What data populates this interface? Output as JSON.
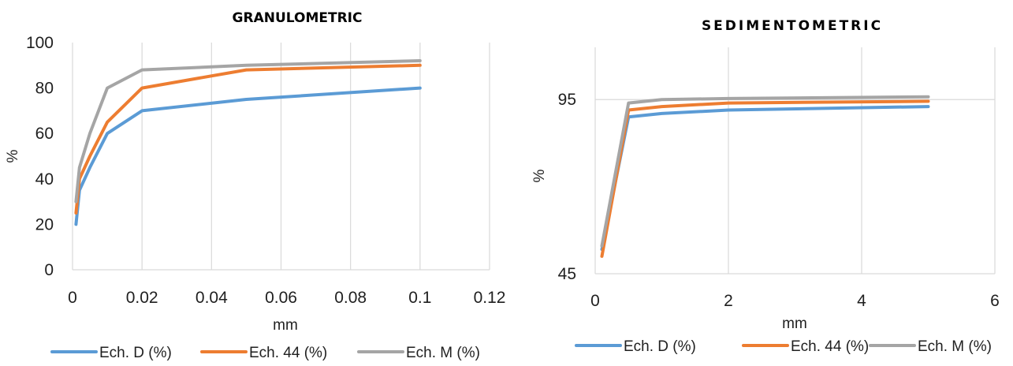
{
  "chart_data": [
    {
      "type": "line",
      "title": "GRANULOMETRIC",
      "xlabel": "mm",
      "ylabel": "%",
      "xlim": [
        0,
        0.12
      ],
      "ylim": [
        0,
        100
      ],
      "xticks": [
        "0",
        "0.02",
        "0.04",
        "0.06",
        "0.08",
        "0.1",
        "0.12"
      ],
      "yticks": [
        "0",
        "20",
        "40",
        "60",
        "80",
        "100"
      ],
      "xtick_values": [
        0,
        0.02,
        0.04,
        0.06,
        0.08,
        0.1,
        0.12
      ],
      "ytick_values": [
        0,
        20,
        40,
        60,
        80,
        100
      ],
      "grid": "vertical",
      "legend": "bottom",
      "series": [
        {
          "name": "Ech. D (%)",
          "color": "#5b9bd5",
          "x": [
            0.001,
            0.002,
            0.005,
            0.01,
            0.02,
            0.05,
            0.1
          ],
          "y": [
            20,
            35,
            45,
            60,
            70,
            75,
            80
          ]
        },
        {
          "name": "Ech. 44 (%)",
          "color": "#ed7d31",
          "x": [
            0.001,
            0.002,
            0.005,
            0.01,
            0.02,
            0.05,
            0.1
          ],
          "y": [
            25,
            40,
            50,
            65,
            80,
            88,
            90
          ]
        },
        {
          "name": "Ech. M (%)",
          "color": "#a5a5a5",
          "x": [
            0.001,
            0.002,
            0.005,
            0.01,
            0.02,
            0.05,
            0.1
          ],
          "y": [
            30,
            45,
            60,
            80,
            88,
            90,
            92
          ]
        }
      ]
    },
    {
      "type": "line",
      "title": "SEDIMENTOMETRIC",
      "xlabel": "mm",
      "ylabel": "%",
      "xlim": [
        0,
        6
      ],
      "ylim": [
        45,
        110
      ],
      "xticks": [
        "0",
        "2",
        "4",
        "6"
      ],
      "yticks": [
        "45",
        "95"
      ],
      "xtick_values": [
        0,
        2,
        4,
        6
      ],
      "ytick_values": [
        45,
        95
      ],
      "grid": "both",
      "legend": "bottom",
      "series": [
        {
          "name": "Ech. D (%)",
          "color": "#5b9bd5",
          "x": [
            0.1,
            0.5,
            1,
            2,
            5
          ],
          "y": [
            52,
            90,
            91,
            92,
            93
          ]
        },
        {
          "name": "Ech. 44 (%)",
          "color": "#ed7d31",
          "x": [
            0.1,
            0.5,
            1,
            2,
            5
          ],
          "y": [
            50,
            92,
            93,
            94,
            94.5
          ]
        },
        {
          "name": "Ech. M (%)",
          "color": "#a5a5a5",
          "x": [
            0.1,
            0.5,
            1,
            2,
            5
          ],
          "y": [
            53,
            94,
            95,
            95.3,
            95.8
          ]
        }
      ]
    }
  ]
}
